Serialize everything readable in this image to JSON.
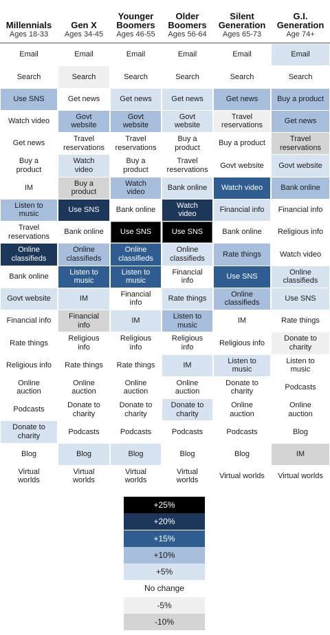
{
  "chart_data": {
    "type": "table",
    "columns": [
      {
        "name": "Millennials",
        "ages": "Ages 18-33"
      },
      {
        "name": "Gen X",
        "ages": "Ages 34-45"
      },
      {
        "name": "Younger\nBoomers",
        "ages": "Ages 46-55"
      },
      {
        "name": "Older\nBoomers",
        "ages": "Ages 56-64"
      },
      {
        "name": "Silent\nGeneration",
        "ages": "Ages 65-73"
      },
      {
        "name": "G.I.\nGeneration",
        "ages": "Age 74+"
      }
    ],
    "cells": [
      [
        {
          "label": "Email",
          "change": "No change"
        },
        {
          "label": "Search",
          "change": "No change"
        },
        {
          "label": "Use SNS",
          "change": "+10%"
        },
        {
          "label": "Watch video",
          "change": "No change"
        },
        {
          "label": "Get news",
          "change": "No change"
        },
        {
          "label": "Buy a\nproduct",
          "change": "No change"
        },
        {
          "label": "IM",
          "change": "No change"
        },
        {
          "label": "Listen to\nmusic",
          "change": "+10%"
        },
        {
          "label": "Travel\nreservations",
          "change": "No change"
        },
        {
          "label": "Online\nclassifieds",
          "change": "+20%"
        },
        {
          "label": "Bank online",
          "change": "No change"
        },
        {
          "label": "Govt website",
          "change": "+5%"
        },
        {
          "label": "Financial info",
          "change": "No change"
        },
        {
          "label": "Rate things",
          "change": "No change"
        },
        {
          "label": "Religious info",
          "change": "No change"
        },
        {
          "label": "Online\nauction",
          "change": "No change"
        },
        {
          "label": "Podcasts",
          "change": "No change"
        },
        {
          "label": "Donate to\ncharity",
          "change": "+5%"
        },
        {
          "label": "Blog",
          "change": "No change"
        },
        {
          "label": "Virtual\nworlds",
          "change": "No change"
        }
      ],
      [
        {
          "label": "Email",
          "change": "No change"
        },
        {
          "label": "Search",
          "change": "-5%"
        },
        {
          "label": "Get news",
          "change": "No change"
        },
        {
          "label": "Govt\nwebsite",
          "change": "+10%"
        },
        {
          "label": "Travel\nreservations",
          "change": "No change"
        },
        {
          "label": "Watch\nvideo",
          "change": "+5%"
        },
        {
          "label": "Buy a\nproduct",
          "change": "-10%"
        },
        {
          "label": "Use SNS",
          "change": "+20%"
        },
        {
          "label": "Bank online",
          "change": "No change"
        },
        {
          "label": "Online\nclassifieds",
          "change": "+10%"
        },
        {
          "label": "Listen to\nmusic",
          "change": "+15%"
        },
        {
          "label": "IM",
          "change": "+5%"
        },
        {
          "label": "Financial\ninfo",
          "change": "-10%"
        },
        {
          "label": "Religious\ninfo",
          "change": "No change"
        },
        {
          "label": "Rate things",
          "change": "No change"
        },
        {
          "label": "Online\nauction",
          "change": "No change"
        },
        {
          "label": "Donate to\ncharity",
          "change": "No change"
        },
        {
          "label": "Podcasts",
          "change": "No change"
        },
        {
          "label": "Blog",
          "change": "+5%"
        },
        {
          "label": "Virtual\nworlds",
          "change": "No change"
        }
      ],
      [
        {
          "label": "Email",
          "change": "No change"
        },
        {
          "label": "Search",
          "change": "No change"
        },
        {
          "label": "Get news",
          "change": "+5%"
        },
        {
          "label": "Govt\nwebsite",
          "change": "+10%"
        },
        {
          "label": "Travel\nreservations",
          "change": "No change"
        },
        {
          "label": "Buy a\nproduct",
          "change": "No change"
        },
        {
          "label": "Watch\nvideo",
          "change": "+10%"
        },
        {
          "label": "Bank online",
          "change": "No change"
        },
        {
          "label": "Use SNS",
          "change": "+25%"
        },
        {
          "label": "Online\nclassifieds",
          "change": "+15%"
        },
        {
          "label": "Listen to\nmusic",
          "change": "+15%"
        },
        {
          "label": "Financial\ninfo",
          "change": "No change"
        },
        {
          "label": "IM",
          "change": "+5%"
        },
        {
          "label": "Religious\ninfo",
          "change": "No change"
        },
        {
          "label": "Rate things",
          "change": "No change"
        },
        {
          "label": "Online\nauction",
          "change": "No change"
        },
        {
          "label": "Donate to\ncharity",
          "change": "No change"
        },
        {
          "label": "Podcasts",
          "change": "No change"
        },
        {
          "label": "Blog",
          "change": "+5%"
        },
        {
          "label": "Virtual\nworlds",
          "change": "No change"
        }
      ],
      [
        {
          "label": "Email",
          "change": "No change"
        },
        {
          "label": "Search",
          "change": "No change"
        },
        {
          "label": "Get news",
          "change": "+5%"
        },
        {
          "label": "Govt\nwebsite",
          "change": "+5%"
        },
        {
          "label": "Buy a\nproduct",
          "change": "No change"
        },
        {
          "label": "Travel\nreservations",
          "change": "No change"
        },
        {
          "label": "Bank online",
          "change": "+5%"
        },
        {
          "label": "Watch\nvideo",
          "change": "+20%"
        },
        {
          "label": "Use SNS",
          "change": "+25%"
        },
        {
          "label": "Online\nclassifieds",
          "change": "+5%"
        },
        {
          "label": "Financial\ninfo",
          "change": "No change"
        },
        {
          "label": "Rate things",
          "change": "+5%"
        },
        {
          "label": "Listen to\nmusic",
          "change": "+10%"
        },
        {
          "label": "Religious\ninfo",
          "change": "No change"
        },
        {
          "label": "IM",
          "change": "+5%"
        },
        {
          "label": "Online\nauction",
          "change": "No change"
        },
        {
          "label": "Donate to\ncharity",
          "change": "+5%"
        },
        {
          "label": "Podcasts",
          "change": "No change"
        },
        {
          "label": "Blog",
          "change": "No change"
        },
        {
          "label": "Virtual\nworlds",
          "change": "No change"
        }
      ],
      [
        {
          "label": "Email",
          "change": "No change"
        },
        {
          "label": "Search",
          "change": "No change"
        },
        {
          "label": "Get news",
          "change": "+10%"
        },
        {
          "label": "Travel\nreservations",
          "change": "-5%"
        },
        {
          "label": "Buy a product",
          "change": "No change"
        },
        {
          "label": "Govt website",
          "change": "No change"
        },
        {
          "label": "Watch video",
          "change": "+15%"
        },
        {
          "label": "Financial info",
          "change": "+5%"
        },
        {
          "label": "Bank online",
          "change": "No change"
        },
        {
          "label": "Rate things",
          "change": "+10%"
        },
        {
          "label": "Use SNS",
          "change": "+15%"
        },
        {
          "label": "Online\nclassifieds",
          "change": "+10%"
        },
        {
          "label": "IM",
          "change": "No change"
        },
        {
          "label": "Religious info",
          "change": "No change"
        },
        {
          "label": "Listen to\nmusic",
          "change": "+5%"
        },
        {
          "label": "Donate to\ncharity",
          "change": "No change"
        },
        {
          "label": "Online\nauction",
          "change": "No change"
        },
        {
          "label": "Podcasts",
          "change": "No change"
        },
        {
          "label": "Blog",
          "change": "No change"
        },
        {
          "label": "Virtual worlds",
          "change": "No change"
        }
      ],
      [
        {
          "label": "Email",
          "change": "+5%"
        },
        {
          "label": "Search",
          "change": "No change"
        },
        {
          "label": "Buy a product",
          "change": "+10%"
        },
        {
          "label": "Get news",
          "change": "+10%"
        },
        {
          "label": "Travel\nreservations",
          "change": "-10%"
        },
        {
          "label": "Govt website",
          "change": "+5%"
        },
        {
          "label": "Bank online",
          "change": "+10%"
        },
        {
          "label": "Financial info",
          "change": "No change"
        },
        {
          "label": "Religious info",
          "change": "No change"
        },
        {
          "label": "Watch video",
          "change": "No change"
        },
        {
          "label": "Online\nclassifieds",
          "change": "+5%"
        },
        {
          "label": "Use SNS",
          "change": "+5%"
        },
        {
          "label": "Rate things",
          "change": "No change"
        },
        {
          "label": "Donate to\ncharity",
          "change": "-5%"
        },
        {
          "label": "Listen to\nmusic",
          "change": "No change"
        },
        {
          "label": "Podcasts",
          "change": "No change"
        },
        {
          "label": "Online\nauction",
          "change": "No change"
        },
        {
          "label": "Blog",
          "change": "No change"
        },
        {
          "label": "IM",
          "change": "-10%"
        },
        {
          "label": "Virtual worlds",
          "change": "No change"
        }
      ]
    ],
    "legend": [
      {
        "label": "+25%",
        "color": "#000000",
        "text_color": "#ffffff"
      },
      {
        "label": "+20%",
        "color": "#1c3759",
        "text_color": "#ffffff"
      },
      {
        "label": "+15%",
        "color": "#2f5d91",
        "text_color": "#ffffff"
      },
      {
        "label": "+10%",
        "color": "#a7bfdc",
        "text_color": "#1a1a1a"
      },
      {
        "label": "+5%",
        "color": "#d8e3f1",
        "text_color": "#1a1a1a"
      },
      {
        "label": "No change",
        "color": "#ffffff",
        "text_color": "#1a1a1a"
      },
      {
        "label": "-5%",
        "color": "#f0f0f0",
        "text_color": "#1a1a1a"
      },
      {
        "label": "-10%",
        "color": "#d4d4d4",
        "text_color": "#1a1a1a"
      }
    ]
  }
}
